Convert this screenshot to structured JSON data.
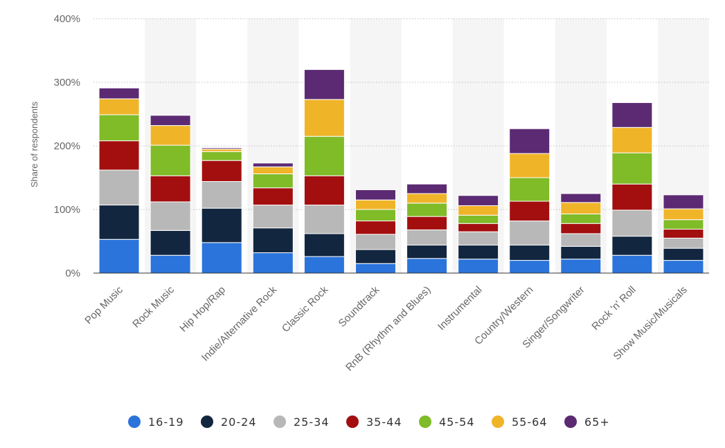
{
  "chart_data": {
    "type": "bar",
    "stacked": true,
    "title": "",
    "xlabel": "",
    "ylabel": "Share of respondents",
    "ylim": [
      0,
      400
    ],
    "yticks": [
      0,
      100,
      200,
      300,
      400
    ],
    "ytick_labels": [
      "0%",
      "100%",
      "200%",
      "300%",
      "400%"
    ],
    "grid": true,
    "legend_position": "bottom",
    "categories": [
      "Pop Music",
      "Rock Music",
      "Hip Hop/Rap",
      "Indie/Alternative Rock",
      "Classic Rock",
      "Soundtrack",
      "RnB (Rhythm and Blues)",
      "Instrumental",
      "Country/Western",
      "Singer/Songwriter",
      "Rock 'n' Roll",
      "Show Music/Musicals"
    ],
    "series": [
      {
        "name": "16-19",
        "color": "#2a74db",
        "values": [
          53,
          28,
          48,
          32,
          26,
          15,
          23,
          22,
          20,
          22,
          28,
          20
        ]
      },
      {
        "name": "20-24",
        "color": "#12263f",
        "values": [
          54,
          39,
          54,
          39,
          36,
          22,
          21,
          22,
          24,
          20,
          30,
          19
        ]
      },
      {
        "name": "25-34",
        "color": "#b8b8b8",
        "values": [
          55,
          45,
          42,
          36,
          45,
          24,
          24,
          21,
          38,
          20,
          41,
          16
        ]
      },
      {
        "name": "35-44",
        "color": "#a30f0f",
        "values": [
          46,
          41,
          33,
          27,
          46,
          21,
          21,
          13,
          31,
          16,
          41,
          14
        ]
      },
      {
        "name": "45-54",
        "color": "#80bb28",
        "values": [
          41,
          48,
          14,
          22,
          62,
          18,
          21,
          13,
          37,
          15,
          49,
          15
        ]
      },
      {
        "name": "55-64",
        "color": "#f0b429",
        "values": [
          25,
          31,
          4,
          11,
          58,
          15,
          15,
          15,
          38,
          18,
          40,
          17
        ]
      },
      {
        "name": "65+",
        "color": "#5c2a73",
        "values": [
          17,
          16,
          2,
          6,
          47,
          16,
          15,
          16,
          39,
          14,
          39,
          22
        ]
      }
    ],
    "legend": [
      "16-19",
      "20-24",
      "25-34",
      "35-44",
      "45-54",
      "55-64",
      "65+"
    ]
  }
}
